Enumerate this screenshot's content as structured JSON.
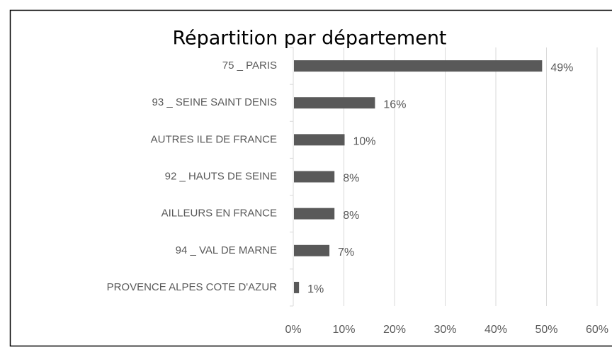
{
  "chart_data": {
    "type": "bar",
    "orientation": "horizontal",
    "title": "Répartition par département",
    "categories": [
      "75 _ PARIS",
      "93 _ SEINE SAINT DENIS",
      "AUTRES ILE DE FRANCE",
      "92 _ HAUTS DE SEINE",
      "AILLEURS EN FRANCE",
      "94 _ VAL DE MARNE",
      "PROVENCE ALPES COTE D'AZUR"
    ],
    "values": [
      49,
      16,
      10,
      8,
      8,
      7,
      1
    ],
    "value_labels": [
      "49%",
      "16%",
      "10%",
      "8%",
      "8%",
      "7%",
      "1%"
    ],
    "color": "#595959",
    "xlim": [
      0,
      60
    ],
    "xticks": [
      {
        "value": 0,
        "label": "0%"
      },
      {
        "value": 10,
        "label": "10%"
      },
      {
        "value": 20,
        "label": "20%"
      },
      {
        "value": 30,
        "label": "30%"
      },
      {
        "value": 40,
        "label": "40%"
      },
      {
        "value": 50,
        "label": "50%"
      },
      {
        "value": 60,
        "label": "60%"
      }
    ],
    "grid": true
  }
}
